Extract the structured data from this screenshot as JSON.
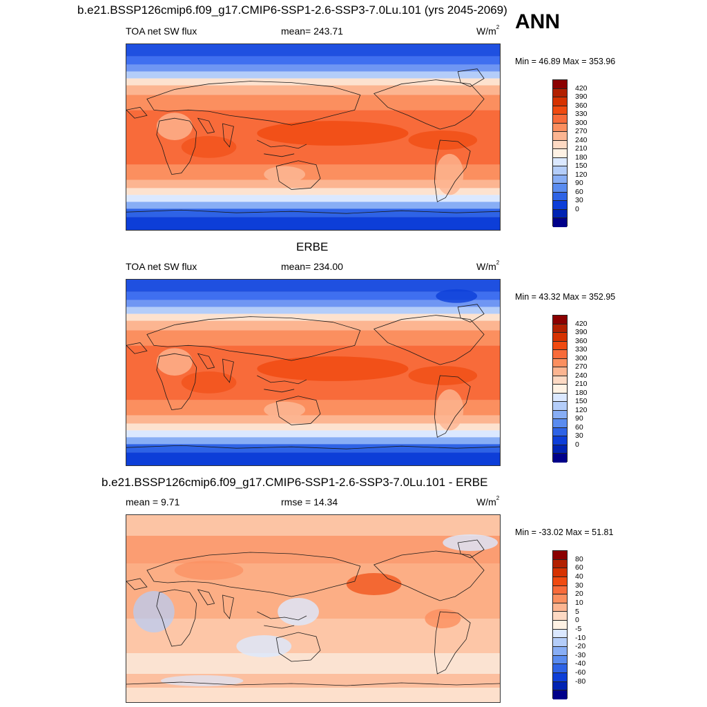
{
  "season": "ANN",
  "panels": [
    {
      "title": "b.e21.BSSP126cmip6.f09_g17.CMIP6-SSP1-2.6-SSP3-7.0Lu.101 (yrs 2045-2069)",
      "left_label": "TOA net SW flux",
      "center_label": "mean= 243.71",
      "units": "W/m",
      "units_sup": "2",
      "minmax": "Min =  46.89 Max = 353.96",
      "colorbar_labels": [
        "420",
        "390",
        "360",
        "330",
        "300",
        "270",
        "240",
        "210",
        "180",
        "150",
        "120",
        "90",
        "60",
        "30",
        "0"
      ]
    },
    {
      "title": "ERBE",
      "left_label": "TOA net SW flux",
      "center_label": "mean= 234.00",
      "units": "W/m",
      "units_sup": "2",
      "minmax": "Min =  43.32 Max = 352.95",
      "colorbar_labels": [
        "420",
        "390",
        "360",
        "330",
        "300",
        "270",
        "240",
        "210",
        "180",
        "150",
        "120",
        "90",
        "60",
        "30",
        "0"
      ]
    },
    {
      "title": "b.e21.BSSP126cmip6.f09_g17.CMIP6-SSP1-2.6-SSP3-7.0Lu.101 - ERBE",
      "left_label": "mean =   9.71",
      "center_label": "rmse =  14.34",
      "units": "W/m",
      "units_sup": "2",
      "minmax": "Min = -33.02 Max =  51.81",
      "colorbar_labels": [
        "80",
        "60",
        "40",
        "30",
        "20",
        "10",
        "5",
        "0",
        "-5",
        "-10",
        "-20",
        "-30",
        "-40",
        "-60",
        "-80"
      ]
    }
  ],
  "colors": {
    "abs_scale": [
      "#8b0000",
      "#b22000",
      "#d63200",
      "#f04a10",
      "#f86b3a",
      "#fb8f5f",
      "#fcb591",
      "#fdd9c3",
      "#fff2e4",
      "#dbe8ff",
      "#b4cdf9",
      "#88aef5",
      "#5a8cf0",
      "#2e63e6",
      "#0d3ed8",
      "#0023b3",
      "#00008a"
    ],
    "diff_scale": [
      "#8b0000",
      "#b22000",
      "#d63200",
      "#f04a10",
      "#f86b3a",
      "#fb8f5f",
      "#fcb591",
      "#fdd9c3",
      "#fff2e4",
      "#dbe8ff",
      "#b4cdf9",
      "#88aef5",
      "#5a8cf0",
      "#2e63e6",
      "#0d3ed8",
      "#0023b3",
      "#00008a"
    ]
  }
}
